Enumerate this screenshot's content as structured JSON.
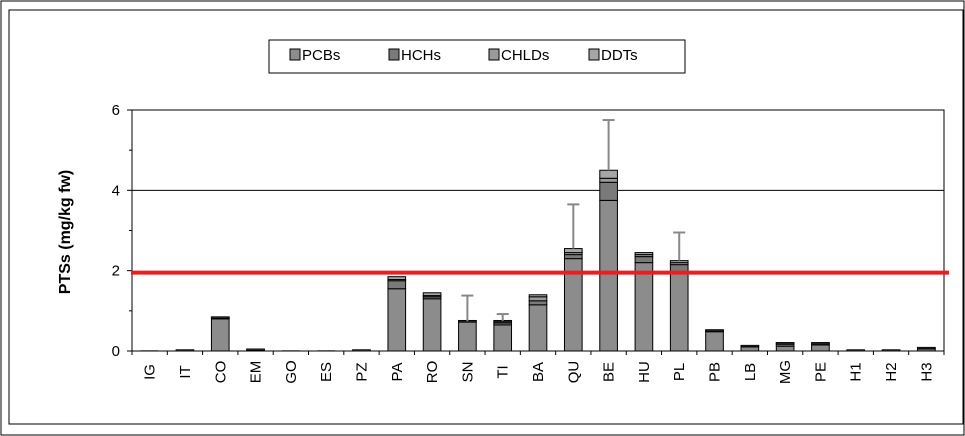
{
  "chart_data": {
    "type": "bar",
    "stacked": true,
    "ylabel": "PTSs (mg/kg fw)",
    "ylim": [
      0,
      6
    ],
    "yticks": [
      0,
      2,
      4,
      6
    ],
    "grid_lines_at": [
      4,
      6
    ],
    "reference_line": {
      "value": 1.95,
      "color": "#ee1c1c"
    },
    "legend_position": "top-center",
    "legend": [
      {
        "name": "PCBs",
        "color": "#8c8c8c"
      },
      {
        "name": "HCHs",
        "color": "#7a7a7a"
      },
      {
        "name": "CHLDs",
        "color": "#9a9a9a"
      },
      {
        "name": "DDTs",
        "color": "#a6a6a6"
      }
    ],
    "categories": [
      "IG",
      "IT",
      "CO",
      "EM",
      "GO",
      "ES",
      "PZ",
      "PA",
      "RO",
      "SN",
      "TI",
      "BA",
      "QU",
      "BE",
      "HU",
      "PL",
      "PB",
      "LB",
      "MG",
      "PE",
      "H1",
      "H2",
      "H3"
    ],
    "series": [
      {
        "name": "PCBs",
        "values": [
          0,
          0.01,
          0.8,
          0.02,
          0,
          0,
          0,
          1.55,
          1.3,
          0.72,
          0.65,
          1.15,
          2.3,
          3.75,
          2.2,
          1.95,
          0.48,
          0.1,
          0.12,
          0.15,
          0.02,
          0.02,
          0.05
        ]
      },
      {
        "name": "HCHs",
        "values": [
          0,
          0,
          0.01,
          0,
          0,
          0,
          0,
          0.2,
          0.05,
          0.01,
          0.05,
          0.1,
          0.1,
          0.45,
          0.15,
          0.2,
          0.02,
          0.01,
          0.05,
          0.03,
          0,
          0,
          0.01
        ]
      },
      {
        "name": "CHLDs",
        "values": [
          0,
          0,
          0.01,
          0,
          0,
          0,
          0,
          0.03,
          0.03,
          0,
          0.03,
          0.1,
          0.05,
          0.1,
          0.05,
          0.05,
          0,
          0,
          0.01,
          0,
          0,
          0,
          0
        ]
      },
      {
        "name": "DDTs",
        "values": [
          0,
          0,
          0.03,
          0.01,
          0,
          0,
          0.01,
          0.07,
          0.07,
          0.01,
          0.02,
          0.05,
          0.1,
          0.2,
          0.05,
          0.05,
          0.02,
          0.01,
          0.02,
          0.01,
          0,
          0,
          0.02
        ]
      }
    ],
    "error_bar_tops": [
      null,
      null,
      null,
      null,
      null,
      null,
      null,
      null,
      null,
      1.38,
      0.92,
      null,
      3.65,
      5.75,
      null,
      2.95,
      null,
      null,
      null,
      null,
      null,
      null,
      null
    ]
  }
}
